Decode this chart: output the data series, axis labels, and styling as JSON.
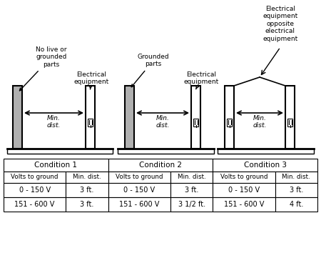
{
  "bg_color": "#ffffff",
  "table": {
    "cond_headers": [
      "Condition 1",
      "Condition 2",
      "Condition 3"
    ],
    "sub_headers": [
      "Volts to ground",
      "Min. dist."
    ],
    "rows": [
      [
        "0 - 150 V",
        "3 ft.",
        "0 - 150 V",
        "3 ft.",
        "0 - 150 V",
        "3 ft."
      ],
      [
        "151 - 600 V",
        "3 ft.",
        "151 - 600 V",
        "3 1/2 ft.",
        "151 - 600 V",
        "4 ft."
      ]
    ]
  },
  "annotations": {
    "cond1_left": "No live or\ngrounded\nparts",
    "cond1_right": "Electrical\nequipment",
    "cond2_left": "Grounded\nparts",
    "cond2_right": "Electrical\nequipment",
    "cond3_top": "Electrical\nequipment\nopposite\nelectrical\nequipment"
  },
  "min_dist": "Min.\ndist.",
  "gray": "#b0b0b0",
  "black": "#000000",
  "white": "#ffffff",
  "lw_panel": 1.5,
  "lw_floor": 2.0
}
